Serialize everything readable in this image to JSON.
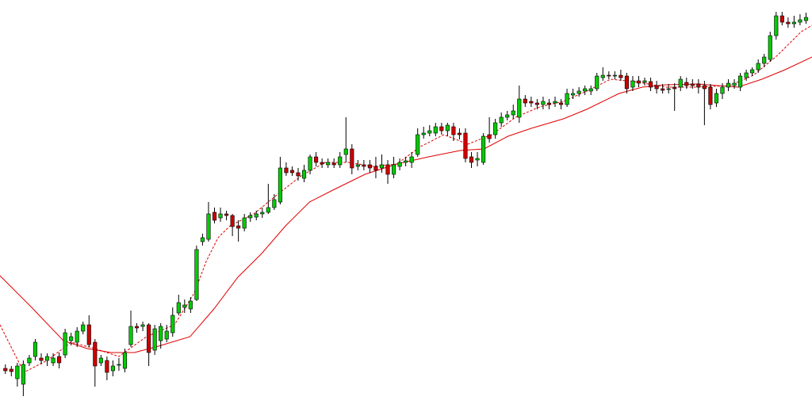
{
  "chart_data": {
    "type": "candlestick",
    "up_color": "#00cc00",
    "down_color": "#cc0000",
    "outline_color": "#000000",
    "xlim": [
      -0.9,
      135
    ],
    "ylim": [
      0,
      515
    ],
    "open": [
      50,
      49,
      37,
      30,
      57,
      65,
      63,
      60,
      57,
      65,
      67,
      85,
      83,
      97,
      105,
      83,
      57,
      60,
      47,
      55,
      50,
      80,
      103,
      103,
      105,
      73,
      85,
      87,
      95,
      120,
      127,
      125,
      137,
      210,
      213,
      247,
      240,
      245,
      243,
      230,
      227,
      240,
      241,
      245,
      247,
      253,
      260,
      303,
      300,
      297,
      290,
      300,
      317,
      310,
      307,
      309,
      307,
      320,
      327,
      305,
      307,
      307,
      305,
      303,
      307,
      295,
      305,
      310,
      310,
      320,
      345,
      347,
      347,
      355,
      350,
      355,
      347,
      347,
      317,
      313,
      310,
      345,
      345,
      360,
      367,
      370,
      367,
      390,
      387,
      385,
      383,
      385,
      385,
      385,
      383,
      395,
      397,
      400,
      400,
      403,
      417,
      420,
      419,
      420,
      419,
      405,
      413,
      411,
      412,
      407,
      403,
      403,
      405,
      405,
      411,
      409,
      409,
      407,
      405,
      385,
      397,
      405,
      407,
      405,
      417,
      423,
      427,
      435,
      440,
      470,
      495,
      487,
      485,
      487,
      489
    ],
    "high": [
      55,
      53,
      57,
      60,
      67,
      87,
      69,
      69,
      69,
      70,
      100,
      95,
      102,
      109,
      117,
      87,
      67,
      65,
      60,
      63,
      75,
      123,
      107,
      109,
      107,
      105,
      107,
      105,
      127,
      143,
      137,
      140,
      205,
      220,
      260,
      253,
      253,
      249,
      245,
      237,
      245,
      247,
      249,
      253,
      283,
      270,
      317,
      310,
      305,
      303,
      307,
      320,
      323,
      315,
      315,
      315,
      323,
      367,
      333,
      313,
      313,
      313,
      317,
      320,
      313,
      317,
      315,
      317,
      323,
      353,
      355,
      357,
      360,
      360,
      360,
      360,
      353,
      353,
      323,
      323,
      347,
      367,
      365,
      373,
      375,
      383,
      407,
      395,
      393,
      390,
      393,
      390,
      393,
      390,
      403,
      403,
      405,
      407,
      407,
      423,
      430,
      425,
      425,
      427,
      423,
      419,
      419,
      417,
      417,
      413,
      409,
      409,
      410,
      419,
      417,
      415,
      415,
      413,
      409,
      403,
      410,
      415,
      415,
      423,
      427,
      430,
      440,
      447,
      475,
      500,
      500,
      493,
      495,
      497,
      499
    ],
    "low": [
      43,
      40,
      27,
      15,
      53,
      60,
      55,
      53,
      53,
      50,
      63,
      79,
      77,
      93,
      77,
      27,
      53,
      35,
      40,
      47,
      45,
      77,
      95,
      97,
      53,
      67,
      75,
      83,
      90,
      117,
      120,
      120,
      135,
      205,
      210,
      233,
      235,
      237,
      217,
      210,
      223,
      235,
      237,
      240,
      245,
      250,
      257,
      293,
      293,
      287,
      285,
      295,
      305,
      303,
      303,
      303,
      303,
      310,
      295,
      300,
      300,
      297,
      290,
      297,
      283,
      290,
      300,
      305,
      303,
      317,
      340,
      343,
      343,
      345,
      343,
      337,
      339,
      310,
      303,
      305,
      307,
      335,
      340,
      355,
      363,
      365,
      360,
      380,
      380,
      377,
      377,
      377,
      380,
      377,
      380,
      390,
      393,
      395,
      395,
      400,
      413,
      415,
      415,
      413,
      397,
      400,
      405,
      407,
      400,
      397,
      397,
      397,
      375,
      400,
      403,
      403,
      397,
      357,
      377,
      380,
      390,
      400,
      403,
      400,
      413,
      419,
      423,
      430,
      437,
      465,
      483,
      480,
      480,
      483,
      485
    ],
    "close": [
      47,
      46,
      53,
      55,
      63,
      83,
      60,
      65,
      63,
      57,
      95,
      90,
      97,
      105,
      80,
      53,
      63,
      45,
      53,
      55,
      70,
      103,
      101,
      105,
      70,
      100,
      103,
      97,
      117,
      133,
      130,
      135,
      200,
      215,
      245,
      237,
      245,
      243,
      229,
      227,
      240,
      243,
      245,
      247,
      253,
      263,
      303,
      297,
      297,
      293,
      300,
      317,
      310,
      308,
      310,
      307,
      317,
      327,
      303,
      307,
      305,
      303,
      300,
      307,
      295,
      307,
      310,
      312,
      317,
      345,
      347,
      350,
      355,
      350,
      357,
      345,
      345,
      315,
      310,
      315,
      343,
      340,
      360,
      367,
      370,
      375,
      390,
      385,
      385,
      383,
      387,
      383,
      387,
      383,
      397,
      397,
      400,
      403,
      403,
      419,
      420,
      419,
      420,
      417,
      403,
      413,
      410,
      413,
      405,
      403,
      401,
      403,
      403,
      415,
      407,
      407,
      405,
      403,
      383,
      397,
      405,
      410,
      410,
      419,
      423,
      427,
      435,
      443,
      470,
      495,
      487,
      485,
      487,
      490,
      493
    ],
    "lines": [
      {
        "color": "#e00000",
        "dashed": true,
        "x": [
          -0.9,
          3.1,
          7.0,
          11.0,
          15.0,
          19.0,
          23.6,
          28.3,
          31.6,
          33.6,
          35.6,
          37.6,
          41.6,
          45.6,
          49.5,
          53.5,
          57.5,
          61.5,
          65.5,
          69.5,
          73.4,
          77.4,
          81.4,
          85.4,
          89.4,
          93.4,
          97.3,
          101.3,
          105.3,
          110.6,
          115.9,
          121.2,
          125.2,
          129.2,
          133.2,
          135.0
        ],
        "values": [
          105,
          45,
          60,
          83,
          75,
          65,
          90,
          105,
          145,
          185,
          215,
          230,
          245,
          270,
          293,
          310,
          310,
          305,
          308,
          330,
          345,
          333,
          345,
          367,
          380,
          387,
          400,
          415,
          412,
          405,
          405,
          407,
          420,
          445,
          475,
          483
        ]
      },
      {
        "color": "#e00000",
        "dashed": false,
        "x": [
          -0.9,
          4.4,
          9.7,
          13.7,
          17.7,
          21.6,
          25.6,
          30.9,
          34.9,
          38.9,
          42.9,
          46.9,
          50.9,
          54.8,
          60.2,
          65.5,
          70.8,
          76.1,
          80.1,
          84.1,
          88.0,
          93.4,
          97.3,
          102.7,
          106.6,
          110.6,
          115.9,
          122.6,
          126.6,
          130.5,
          135.0
        ],
        "values": [
          167,
          127,
          85,
          75,
          70,
          70,
          78,
          90,
          125,
          165,
          195,
          230,
          260,
          275,
          295,
          308,
          317,
          325,
          327,
          343,
          353,
          365,
          377,
          397,
          405,
          408,
          409,
          405,
          415,
          427,
          443
        ]
      }
    ]
  }
}
